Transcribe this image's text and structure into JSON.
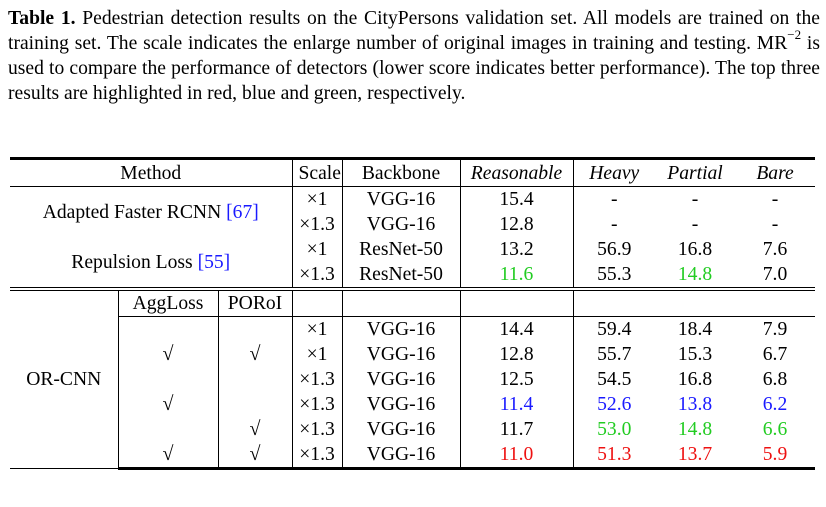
{
  "caption": {
    "label": "Table 1.",
    "text_before_sup": " Pedestrian detection results on the CityPersons validation set. All models are trained on the training set. The scale indicates the enlarge number of original images in training and testing. MR",
    "sup": "−2",
    "text_after_sup": " is used to compare the performance of detectors (lower score indicates better performance). The top three results are highlighted in red, blue and green, respectively."
  },
  "headers": {
    "method": "Method",
    "scale": "Scale",
    "backbone": "Backbone",
    "reasonable": "Reasonable",
    "heavy": "Heavy",
    "partial": "Partial",
    "bare": "Bare",
    "aggloss": "AggLoss",
    "poroi": "PORoI"
  },
  "groups": {
    "adapted": {
      "name": "Adapted Faster RCNN ",
      "ref": "[67]"
    },
    "repulsion": {
      "name": "Repulsion Loss ",
      "ref": "[55]"
    },
    "orcnn": {
      "name": "OR-CNN"
    }
  },
  "check_mark": "√",
  "rows": [
    {
      "scale": "×1",
      "backbone": "VGG-16",
      "reasonable": "15.4",
      "heavy": "-",
      "partial": "-",
      "bare": "-"
    },
    {
      "scale": "×1.3",
      "backbone": "VGG-16",
      "reasonable": "12.8",
      "heavy": "-",
      "partial": "-",
      "bare": "-"
    },
    {
      "scale": "×1",
      "backbone": "ResNet-50",
      "reasonable": "13.2",
      "heavy": "56.9",
      "partial": "16.8",
      "bare": "7.6"
    },
    {
      "scale": "×1.3",
      "backbone": "ResNet-50",
      "reasonable": "11.6",
      "heavy": "55.3",
      "partial": "14.8",
      "bare": "7.0"
    },
    {
      "scale": "×1",
      "backbone": "VGG-16",
      "reasonable": "14.4",
      "heavy": "59.4",
      "partial": "18.4",
      "bare": "7.9"
    },
    {
      "scale": "×1",
      "backbone": "VGG-16",
      "reasonable": "12.8",
      "heavy": "55.7",
      "partial": "15.3",
      "bare": "6.7"
    },
    {
      "scale": "×1.3",
      "backbone": "VGG-16",
      "reasonable": "12.5",
      "heavy": "54.5",
      "partial": "16.8",
      "bare": "6.8"
    },
    {
      "scale": "×1.3",
      "backbone": "VGG-16",
      "reasonable": "11.4",
      "heavy": "52.6",
      "partial": "13.8",
      "bare": "6.2"
    },
    {
      "scale": "×1.3",
      "backbone": "VGG-16",
      "reasonable": "11.7",
      "heavy": "53.0",
      "partial": "14.8",
      "bare": "6.6"
    },
    {
      "scale": "×1.3",
      "backbone": "VGG-16",
      "reasonable": "11.0",
      "heavy": "51.3",
      "partial": "13.7",
      "bare": "5.9"
    }
  ],
  "highlight_colors": {
    "red": "#ee1111",
    "blue": "#1a1aff",
    "green": "#22cc22"
  }
}
